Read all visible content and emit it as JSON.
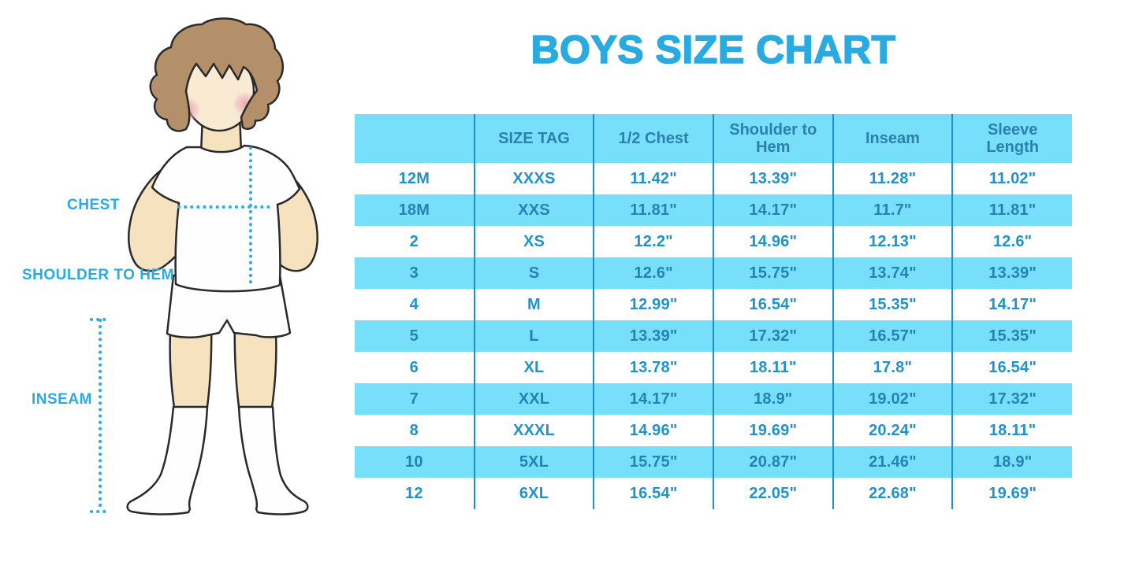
{
  "title": "BOYS SIZE CHART",
  "figure": {
    "labels": {
      "chest": "CHEST",
      "shoulder_to_hem": "SHOULDER TO HEM",
      "inseam": "INSEAM"
    }
  },
  "chart_data": {
    "type": "table",
    "title": "BOYS SIZE CHART",
    "columns": [
      "",
      "SIZE TAG",
      "1/2 Chest",
      "Shoulder to Hem",
      "Inseam",
      "Sleeve Length"
    ],
    "rows": [
      [
        "12M",
        "XXXS",
        "11.42\"",
        "13.39\"",
        "11.28\"",
        "11.02\""
      ],
      [
        "18M",
        "XXS",
        "11.81\"",
        "14.17\"",
        "11.7\"",
        "11.81\""
      ],
      [
        "2",
        "XS",
        "12.2\"",
        "14.96\"",
        "12.13\"",
        "12.6\""
      ],
      [
        "3",
        "S",
        "12.6\"",
        "15.75\"",
        "13.74\"",
        "13.39\""
      ],
      [
        "4",
        "M",
        "12.99\"",
        "16.54\"",
        "15.35\"",
        "14.17\""
      ],
      [
        "5",
        "L",
        "13.39\"",
        "17.32\"",
        "16.57\"",
        "15.35\""
      ],
      [
        "6",
        "XL",
        "13.78\"",
        "18.11\"",
        "17.8\"",
        "16.54\""
      ],
      [
        "7",
        "XXL",
        "14.17\"",
        "18.9\"",
        "19.02\"",
        "17.32\""
      ],
      [
        "8",
        "XXXL",
        "14.96\"",
        "19.69\"",
        "20.24\"",
        "18.11\""
      ],
      [
        "10",
        "5XL",
        "15.75\"",
        "20.87\"",
        "21.46\"",
        "18.9\""
      ],
      [
        "12",
        "6XL",
        "16.54\"",
        "22.05\"",
        "22.68\"",
        "19.69\""
      ]
    ]
  },
  "colors": {
    "accent": "#29ABE2",
    "table_fill": "#77DFFA",
    "divider": "#1A93CC",
    "header_text": "#2B80AC",
    "cell_text": "#1E93CB",
    "cell_text_on_fill": "#2383B6",
    "measure_dots": "#2BACE4"
  }
}
